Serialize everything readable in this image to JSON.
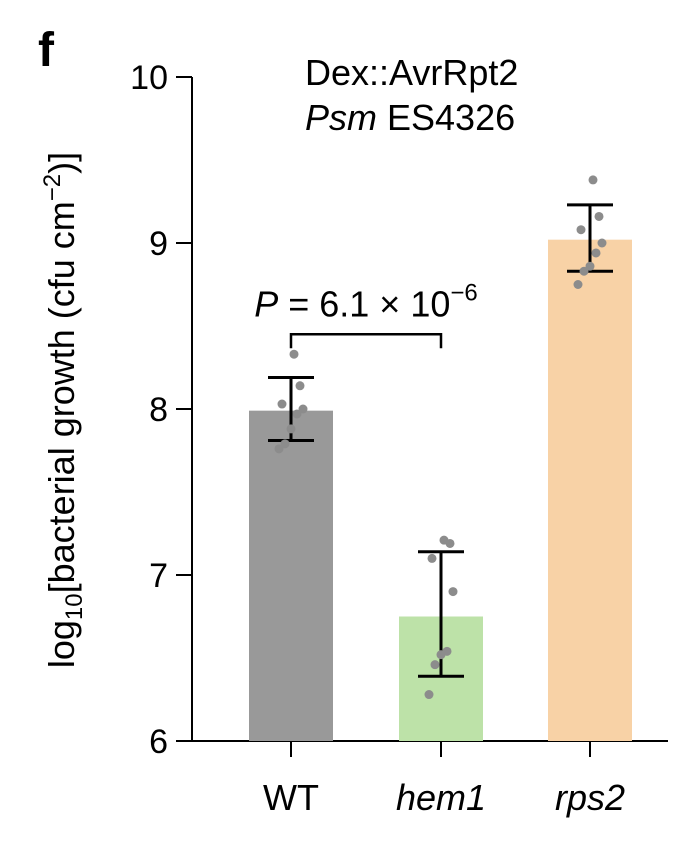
{
  "panel_label": "f",
  "chart_data": {
    "type": "bar",
    "title_line1": "Dex::AvrRpt2",
    "title_line2_italic": "Psm",
    "title_line2_rest": " ES4326",
    "ylabel_main": "log",
    "ylabel_sub": "10",
    "ylabel_mid": "[bacterial growth (cfu cm",
    "ylabel_sup": "−2",
    "ylabel_end": ")]",
    "ylim": [
      6,
      10
    ],
    "yticks": [
      6,
      7,
      8,
      9,
      10
    ],
    "ytick_labels": [
      "6",
      "7",
      "8",
      "9",
      "10"
    ],
    "categories": [
      "WT",
      "hem1",
      "rps2"
    ],
    "italic_categories": [
      false,
      true,
      true
    ],
    "values": [
      7.99,
      6.75,
      9.02
    ],
    "error_low": [
      7.81,
      6.39,
      8.83
    ],
    "error_high": [
      8.19,
      7.14,
      9.23
    ],
    "colors": [
      "#999999",
      "#bde2a8",
      "#f8d2a6"
    ],
    "points": [
      [
        7.76,
        7.79,
        7.88,
        7.97,
        8.0,
        8.03,
        8.14,
        8.33
      ],
      [
        6.28,
        6.46,
        6.52,
        6.54,
        6.9,
        7.1,
        7.19,
        7.21
      ],
      [
        8.75,
        8.83,
        8.86,
        8.94,
        9.0,
        9.08,
        9.16,
        9.38
      ]
    ],
    "point_color": "#8c8c8c",
    "annotation": {
      "p_label": "P",
      "p_rest": " = 6.1 × 10",
      "p_exp": "−6",
      "from_category": 0,
      "to_category": 1,
      "bracket_y": 8.45
    }
  }
}
